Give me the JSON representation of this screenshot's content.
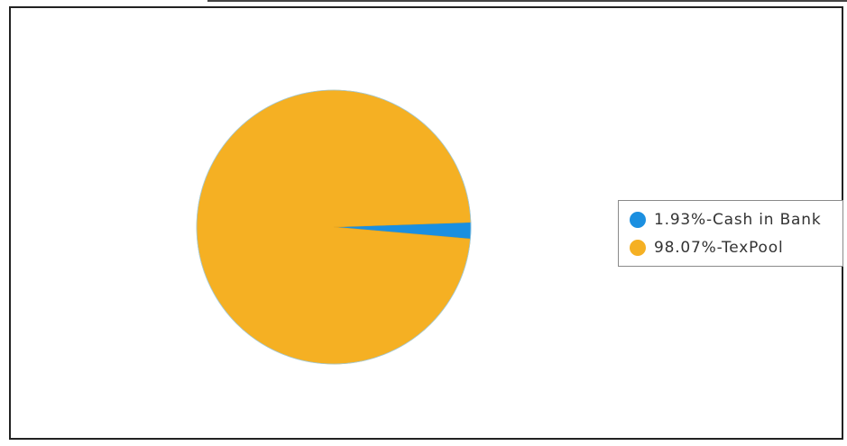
{
  "chart_data": {
    "type": "pie",
    "title": "",
    "legend_position": "right",
    "slices": [
      {
        "label": "1.93%-Cash in Bank",
        "name": "Cash in Bank",
        "value": 1.93,
        "color": "#1b8fe0"
      },
      {
        "label": "98.07%-TexPool",
        "name": "TexPool",
        "value": 98.07,
        "color": "#f5b023"
      }
    ]
  }
}
